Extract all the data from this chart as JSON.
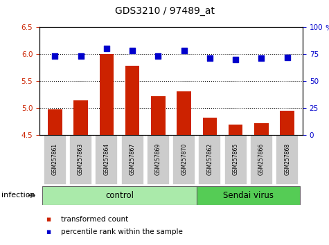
{
  "title": "GDS3210 / 97489_at",
  "samples": [
    "GSM257861",
    "GSM257863",
    "GSM257864",
    "GSM257867",
    "GSM257869",
    "GSM257870",
    "GSM257862",
    "GSM257865",
    "GSM257866",
    "GSM257868"
  ],
  "bar_values": [
    4.97,
    5.14,
    6.0,
    5.78,
    5.21,
    5.3,
    4.82,
    4.69,
    4.72,
    4.95
  ],
  "dot_values": [
    73,
    73,
    80,
    78,
    73,
    78,
    71,
    70,
    71,
    72
  ],
  "bar_color": "#cc2200",
  "dot_color": "#0000cc",
  "ylim_left": [
    4.5,
    6.5
  ],
  "ylim_right": [
    0,
    100
  ],
  "yticks_left": [
    4.5,
    5.0,
    5.5,
    6.0,
    6.5
  ],
  "yticks_right": [
    0,
    25,
    50,
    75,
    100
  ],
  "dotted_lines": [
    5.0,
    5.5,
    6.0
  ],
  "legend_bar_label": "transformed count",
  "legend_dot_label": "percentile rank within the sample",
  "tick_label_color_left": "#cc2200",
  "tick_label_color_right": "#0000cc",
  "group_control_color": "#aaeaaa",
  "group_sendai_color": "#55cc55",
  "sample_box_color": "#cccccc",
  "infection_label": "infection",
  "control_n": 6,
  "sendai_n": 4
}
